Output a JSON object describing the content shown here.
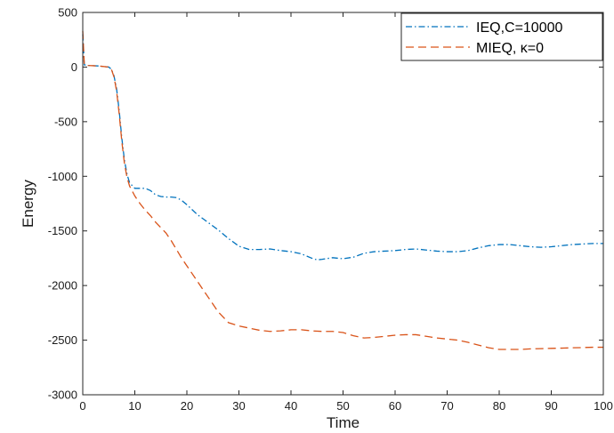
{
  "chart_data": {
    "type": "line",
    "title": "",
    "xlabel": "Time",
    "ylabel": "Energy",
    "xlim": [
      0,
      100
    ],
    "ylim": [
      -3000,
      500
    ],
    "xticks": [
      0,
      10,
      20,
      30,
      40,
      50,
      60,
      70,
      80,
      90,
      100
    ],
    "yticks": [
      500,
      0,
      -500,
      -1000,
      -1500,
      -2000,
      -2500,
      -3000
    ],
    "grid": false,
    "legend": "top-right",
    "series": [
      {
        "name": "IEQ,C=10000",
        "color": "#0072BD",
        "style": "dash-dot",
        "x": [
          0,
          0.3,
          1,
          3,
          4,
          5,
          5.5,
          6,
          6.5,
          7,
          7.5,
          8,
          8.5,
          9,
          10,
          11,
          12,
          13,
          14,
          15,
          16,
          17,
          18,
          19,
          20,
          22,
          24,
          26,
          28,
          30,
          32,
          34,
          36,
          38,
          40,
          42,
          44,
          45,
          46,
          48,
          50,
          52,
          54,
          56,
          58,
          60,
          62,
          64,
          66,
          68,
          70,
          72,
          74,
          76,
          78,
          80,
          82,
          84,
          86,
          88,
          90,
          92,
          94,
          96,
          98,
          100
        ],
        "values": [
          300,
          20,
          15,
          10,
          5,
          0,
          -20,
          -80,
          -200,
          -400,
          -650,
          -850,
          -980,
          -1060,
          -1110,
          -1110,
          -1110,
          -1130,
          -1170,
          -1185,
          -1190,
          -1190,
          -1195,
          -1220,
          -1260,
          -1350,
          -1420,
          -1490,
          -1570,
          -1640,
          -1670,
          -1670,
          -1665,
          -1680,
          -1690,
          -1710,
          -1750,
          -1765,
          -1760,
          -1745,
          -1755,
          -1740,
          -1705,
          -1690,
          -1685,
          -1680,
          -1670,
          -1665,
          -1675,
          -1685,
          -1690,
          -1690,
          -1680,
          -1655,
          -1635,
          -1625,
          -1625,
          -1635,
          -1645,
          -1650,
          -1645,
          -1635,
          -1625,
          -1620,
          -1615,
          -1615
        ]
      },
      {
        "name": "MIEQ,  κ=0",
        "color": "#D95319",
        "style": "dashed",
        "x": [
          0,
          0.3,
          1,
          3,
          4,
          5,
          5.5,
          6,
          6.5,
          7,
          7.5,
          8,
          8.5,
          9,
          10,
          11,
          12,
          13,
          14,
          15,
          16,
          17,
          18,
          19,
          20,
          22,
          24,
          26,
          28,
          30,
          32,
          34,
          36,
          38,
          40,
          42,
          44,
          46,
          48,
          50,
          52,
          54,
          56,
          58,
          60,
          62,
          64,
          66,
          68,
          70,
          72,
          74,
          76,
          78,
          80,
          82,
          84,
          86,
          88,
          90,
          92,
          94,
          96,
          98,
          100
        ],
        "values": [
          330,
          20,
          15,
          10,
          5,
          0,
          -20,
          -90,
          -220,
          -430,
          -680,
          -880,
          -1010,
          -1090,
          -1180,
          -1250,
          -1310,
          -1360,
          -1420,
          -1470,
          -1520,
          -1590,
          -1670,
          -1750,
          -1820,
          -1960,
          -2100,
          -2240,
          -2340,
          -2370,
          -2390,
          -2410,
          -2420,
          -2415,
          -2405,
          -2405,
          -2415,
          -2420,
          -2420,
          -2430,
          -2460,
          -2480,
          -2475,
          -2465,
          -2455,
          -2450,
          -2450,
          -2465,
          -2480,
          -2490,
          -2500,
          -2520,
          -2545,
          -2570,
          -2585,
          -2585,
          -2585,
          -2580,
          -2578,
          -2575,
          -2573,
          -2570,
          -2568,
          -2565,
          -2565
        ]
      }
    ]
  }
}
